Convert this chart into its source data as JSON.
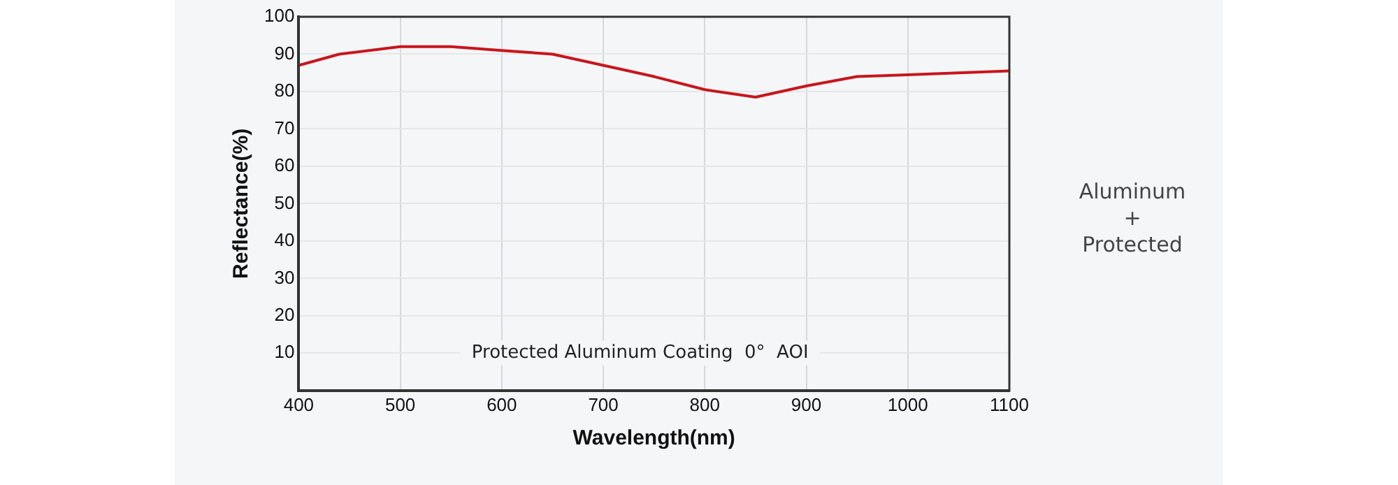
{
  "chart_data": {
    "type": "line",
    "xlabel": "Wavelength(nm)",
    "ylabel": "Reflectance(%)",
    "x": [
      400,
      440,
      500,
      550,
      600,
      650,
      700,
      750,
      800,
      850,
      900,
      950,
      1000,
      1100
    ],
    "series": [
      {
        "color": "#c8161d",
        "values": [
          87,
          90,
          92,
          92,
          91,
          90,
          87,
          84,
          80.5,
          78.5,
          81.5,
          84,
          84.5,
          85.5
        ]
      }
    ],
    "xlim": [
      400,
      1100
    ],
    "xticks": [
      400,
      500,
      600,
      700,
      800,
      900,
      1000,
      1100
    ],
    "ylim": [
      0,
      100
    ],
    "yticks": [
      {
        "value": 0,
        "label": null
      },
      10,
      20,
      30,
      40,
      50,
      60,
      70,
      80,
      90,
      100
    ],
    "grid": true,
    "legend": false,
    "marker": "none",
    "line_style": "solid",
    "annotations": [
      "Protected Aluminum Coating  0°  AOI",
      "Aluminum\n+\nProtected"
    ]
  }
}
